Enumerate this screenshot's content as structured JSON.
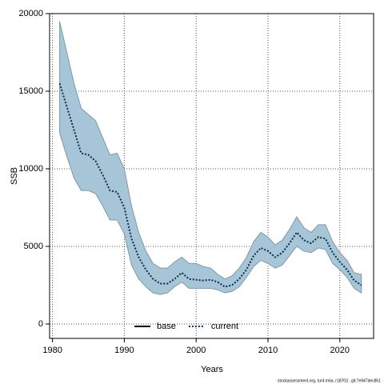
{
  "chart_data": {
    "type": "line",
    "x_label": "Years",
    "y_label": "SSB",
    "footer": "stockassessment.org, tur4.m6a, r18703 , git:7e947dec851",
    "x": [
      1981,
      1982,
      1983,
      1984,
      1985,
      1986,
      1987,
      1988,
      1989,
      1990,
      1991,
      1992,
      1993,
      1994,
      1995,
      1996,
      1997,
      1998,
      1999,
      2000,
      2001,
      2002,
      2003,
      2004,
      2005,
      2006,
      2007,
      2008,
      2009,
      2010,
      2011,
      2012,
      2013,
      2014,
      2015,
      2016,
      2017,
      2018,
      2019,
      2020,
      2021,
      2022,
      2023
    ],
    "series": [
      {
        "name": "current",
        "color": "#0b2e4f",
        "values": [
          15500,
          14000,
          12500,
          11000,
          10900,
          10500,
          9600,
          8600,
          8500,
          7500,
          5500,
          4300,
          3500,
          2900,
          2600,
          2600,
          2900,
          3300,
          2900,
          2850,
          2800,
          2850,
          2700,
          2400,
          2500,
          2900,
          3500,
          4400,
          4900,
          4700,
          4300,
          4600,
          5200,
          5900,
          5400,
          5200,
          5600,
          5500,
          4600,
          4000,
          3500,
          2800,
          2500
        ]
      }
    ],
    "band": {
      "color": "#a6c5d6",
      "edge_color": "#7f9aa8",
      "upper": [
        19500,
        17500,
        15500,
        13900,
        13500,
        13100,
        12000,
        10900,
        11000,
        10000,
        7600,
        5900,
        4700,
        3900,
        3600,
        3600,
        4000,
        4300,
        3900,
        3900,
        3700,
        3600,
        3200,
        2900,
        3100,
        3600,
        4300,
        5300,
        5900,
        5600,
        5100,
        5400,
        6100,
        6900,
        6200,
        5900,
        6400,
        6400,
        5300,
        4600,
        4100,
        3300,
        3200
      ],
      "lower": [
        12300,
        10800,
        9400,
        8600,
        8600,
        8400,
        7600,
        6700,
        6700,
        5800,
        3800,
        2900,
        2400,
        2000,
        1900,
        2000,
        2400,
        2700,
        2300,
        2300,
        2300,
        2300,
        2200,
        2000,
        2100,
        2400,
        3000,
        3700,
        4100,
        3900,
        3600,
        3800,
        4400,
        5000,
        4700,
        4600,
        4900,
        4800,
        3900,
        3500,
        3000,
        2300,
        2000
      ]
    },
    "legend": [
      {
        "name": "base",
        "color": "#000000",
        "dash": "solid"
      },
      {
        "name": "current",
        "color": "#0b2e4f",
        "dash": "dotted"
      }
    ],
    "xlim": [
      1979.6,
      2024.7
    ],
    "ylim": [
      -930,
      20000
    ],
    "xticks": [
      1980,
      1990,
      2000,
      2010,
      2020
    ],
    "yticks": [
      0,
      5000,
      10000,
      15000,
      20000
    ],
    "grid": true
  }
}
